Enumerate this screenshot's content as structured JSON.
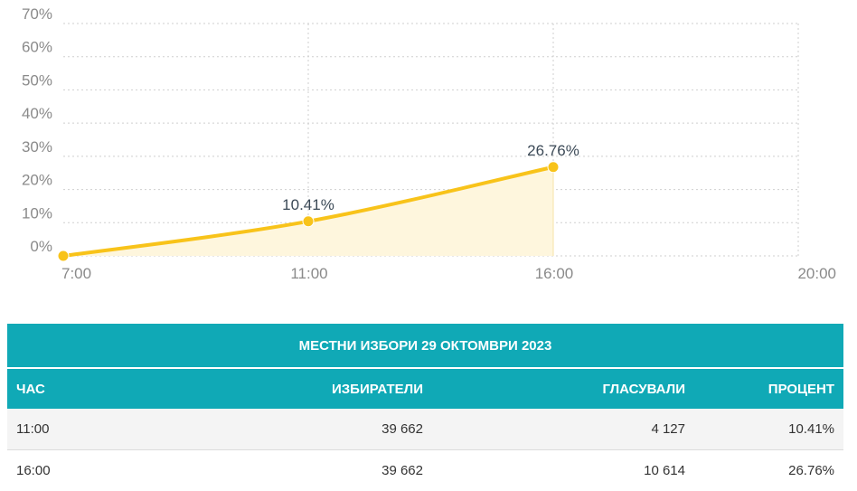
{
  "chart_data": {
    "type": "area",
    "x_ticks": [
      "7:00",
      "11:00",
      "16:00",
      "20:00"
    ],
    "y_ticks": [
      "0%",
      "10%",
      "20%",
      "30%",
      "40%",
      "50%",
      "60%",
      "70%"
    ],
    "ylim": [
      0,
      70
    ],
    "grid": true,
    "series": [
      {
        "points": [
          {
            "x": "7:00",
            "y": 0
          },
          {
            "x": "11:00",
            "y": 10.41,
            "label": "10.41%"
          },
          {
            "x": "16:00",
            "y": 26.76,
            "label": "26.76%"
          }
        ]
      }
    ],
    "colors": {
      "line": "#f8c31a",
      "fill": "#fef6dd",
      "grid": "#cfcfcf"
    }
  },
  "table": {
    "title": "МЕСТНИ ИЗБОРИ 29 ОКТОМВРИ 2023",
    "headers": [
      "ЧАС",
      "ИЗБИРАТЕЛИ",
      "ГЛАСУВАЛИ",
      "ПРОЦЕНТ"
    ],
    "rows": [
      [
        "11:00",
        "39 662",
        "4 127",
        "10.41%"
      ],
      [
        "16:00",
        "39 662",
        "10 614",
        "26.76%"
      ]
    ],
    "header_color": "#10a9b6"
  }
}
